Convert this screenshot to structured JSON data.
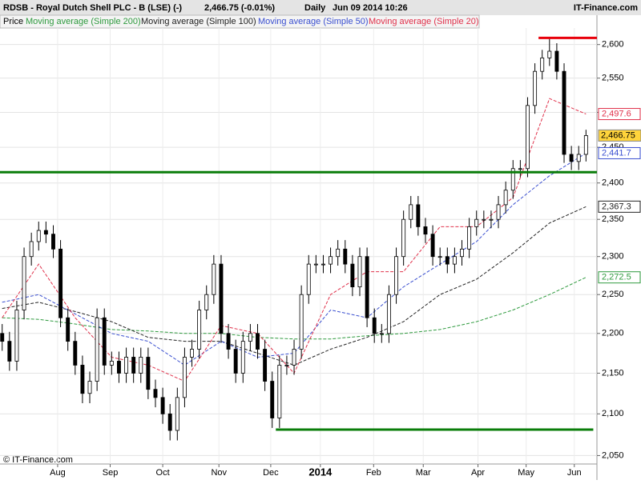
{
  "chart_data": {
    "type": "candlestick",
    "title": "RDSB - Royal Dutch Shell PLC - B (LSE) (-)",
    "quote": "2,466.75 (-0.01%)",
    "period": "Daily",
    "date": "Jun 09 2014 10:26",
    "brand": "IT-Finance.com",
    "copyright": "© IT-Finance.com",
    "price_label": "Price",
    "log_scale": true,
    "grid": true,
    "xlim": [
      -0.3,
      81.5
    ],
    "ylim": [
      2040,
      2625
    ],
    "xticks": [
      {
        "value": 7.6,
        "label": "Aug"
      },
      {
        "value": 14.8,
        "label": "Sep"
      },
      {
        "value": 22,
        "label": "Oct"
      },
      {
        "value": 29.7,
        "label": "Nov"
      },
      {
        "value": 36.8,
        "label": "Dec"
      },
      {
        "value": 43.6,
        "label": "2014"
      },
      {
        "value": 50.9,
        "label": "Feb"
      },
      {
        "value": 57.7,
        "label": "Mar"
      },
      {
        "value": 65.2,
        "label": "Apr"
      },
      {
        "value": 71.8,
        "label": "May"
      },
      {
        "value": 78.4,
        "label": "Jun"
      }
    ],
    "yticks": [
      {
        "value": 2050,
        "label": "2,050"
      },
      {
        "value": 2100,
        "label": "2,100"
      },
      {
        "value": 2150,
        "label": "2,150"
      },
      {
        "value": 2200,
        "label": "2,200"
      },
      {
        "value": 2250,
        "label": "2,250"
      },
      {
        "value": 2300,
        "label": "2,300"
      },
      {
        "value": 2350,
        "label": "2,350"
      },
      {
        "value": 2400,
        "label": "2,400"
      },
      {
        "value": 2450,
        "label": "2,450"
      },
      {
        "value": 2500,
        "label": "2,500"
      },
      {
        "value": 2550,
        "label": "2,550"
      },
      {
        "value": 2600,
        "label": "2,600"
      }
    ],
    "candles": [
      [
        2200,
        2212,
        2178,
        2190
      ],
      [
        2190,
        2202,
        2153,
        2165
      ],
      [
        2165,
        2242,
        2153,
        2230
      ],
      [
        2230,
        2312,
        2218,
        2300
      ],
      [
        2300,
        2332,
        2288,
        2320
      ],
      [
        2320,
        2347,
        2308,
        2335
      ],
      [
        2335,
        2347,
        2318,
        2330
      ],
      [
        2330,
        2342,
        2298,
        2310
      ],
      [
        2310,
        2322,
        2208,
        2220
      ],
      [
        2220,
        2232,
        2178,
        2190
      ],
      [
        2190,
        2202,
        2148,
        2160
      ],
      [
        2160,
        2172,
        2113,
        2125
      ],
      [
        2125,
        2152,
        2113,
        2140
      ],
      [
        2140,
        2232,
        2128,
        2220
      ],
      [
        2220,
        2232,
        2148,
        2160
      ],
      [
        2160,
        2177,
        2148,
        2165
      ],
      [
        2165,
        2177,
        2138,
        2150
      ],
      [
        2150,
        2182,
        2138,
        2170
      ],
      [
        2170,
        2182,
        2138,
        2150
      ],
      [
        2150,
        2182,
        2138,
        2170
      ],
      [
        2170,
        2182,
        2118,
        2130
      ],
      [
        2130,
        2142,
        2108,
        2120
      ],
      [
        2120,
        2132,
        2088,
        2100
      ],
      [
        2100,
        2112,
        2068,
        2080
      ],
      [
        2080,
        2132,
        2068,
        2120
      ],
      [
        2120,
        2182,
        2108,
        2170
      ],
      [
        2170,
        2192,
        2158,
        2180
      ],
      [
        2180,
        2242,
        2168,
        2230
      ],
      [
        2230,
        2262,
        2218,
        2250
      ],
      [
        2250,
        2302,
        2238,
        2290
      ],
      [
        2290,
        2302,
        2188,
        2200
      ],
      [
        2200,
        2212,
        2168,
        2180
      ],
      [
        2180,
        2192,
        2138,
        2150
      ],
      [
        2150,
        2202,
        2138,
        2190
      ],
      [
        2190,
        2212,
        2178,
        2200
      ],
      [
        2200,
        2212,
        2168,
        2180
      ],
      [
        2180,
        2192,
        2128,
        2140
      ],
      [
        2140,
        2152,
        2083,
        2095
      ],
      [
        2095,
        2172,
        2083,
        2160
      ],
      [
        2160,
        2172,
        2148,
        2160
      ],
      [
        2160,
        2192,
        2148,
        2180
      ],
      [
        2180,
        2262,
        2168,
        2250
      ],
      [
        2250,
        2302,
        2238,
        2290
      ],
      [
        2290,
        2302,
        2278,
        2290
      ],
      [
        2290,
        2302,
        2278,
        2290
      ],
      [
        2290,
        2312,
        2278,
        2300
      ],
      [
        2300,
        2322,
        2288,
        2310
      ],
      [
        2310,
        2322,
        2278,
        2290
      ],
      [
        2290,
        2302,
        2248,
        2260
      ],
      [
        2260,
        2312,
        2248,
        2300
      ],
      [
        2300,
        2312,
        2208,
        2220
      ],
      [
        2220,
        2232,
        2188,
        2200
      ],
      [
        2200,
        2212,
        2188,
        2200
      ],
      [
        2200,
        2262,
        2188,
        2250
      ],
      [
        2250,
        2312,
        2238,
        2300
      ],
      [
        2300,
        2362,
        2288,
        2350
      ],
      [
        2350,
        2382,
        2338,
        2370
      ],
      [
        2370,
        2382,
        2328,
        2340
      ],
      [
        2340,
        2352,
        2318,
        2330
      ],
      [
        2330,
        2342,
        2288,
        2300
      ],
      [
        2300,
        2312,
        2288,
        2300
      ],
      [
        2300,
        2312,
        2278,
        2290
      ],
      [
        2290,
        2312,
        2278,
        2300
      ],
      [
        2300,
        2322,
        2288,
        2310
      ],
      [
        2310,
        2352,
        2298,
        2340
      ],
      [
        2340,
        2362,
        2328,
        2350
      ],
      [
        2350,
        2362,
        2338,
        2350
      ],
      [
        2350,
        2362,
        2338,
        2350
      ],
      [
        2350,
        2382,
        2338,
        2370
      ],
      [
        2370,
        2402,
        2358,
        2390
      ],
      [
        2390,
        2432,
        2378,
        2420
      ],
      [
        2420,
        2432,
        2408,
        2420
      ],
      [
        2420,
        2522,
        2408,
        2510
      ],
      [
        2510,
        2572,
        2498,
        2560
      ],
      [
        2560,
        2592,
        2548,
        2580
      ],
      [
        2580,
        2610,
        2568,
        2590
      ],
      [
        2590,
        2602,
        2548,
        2560
      ],
      [
        2560,
        2572,
        2428,
        2440
      ],
      [
        2440,
        2452,
        2418,
        2430
      ],
      [
        2430,
        2452,
        2418,
        2440
      ],
      [
        2440,
        2475,
        2430,
        2466.75
      ]
    ],
    "last_price": {
      "value": 2466.75,
      "label": "2,466.75",
      "color": "#ffd43b"
    },
    "series": [
      {
        "name": "Moving average (Simple 200)",
        "color": "#2e9a3e",
        "x": [
          0,
          5,
          10,
          15,
          20,
          25,
          30,
          35,
          40,
          45,
          50,
          55,
          60,
          65,
          70,
          75,
          80
        ],
        "values": [
          2220,
          2218,
          2212,
          2205,
          2203,
          2200,
          2200,
          2195,
          2193,
          2193,
          2197,
          2200,
          2205,
          2215,
          2230,
          2250,
          2272.5
        ],
        "last_label": "2,272.5"
      },
      {
        "name": "Moving average (Simple 100)",
        "color": "#222222",
        "x": [
          0,
          5,
          10,
          15,
          20,
          25,
          30,
          35,
          40,
          45,
          50,
          55,
          60,
          65,
          70,
          75,
          80
        ],
        "values": [
          2232,
          2240,
          2228,
          2215,
          2195,
          2190,
          2190,
          2175,
          2160,
          2180,
          2195,
          2215,
          2250,
          2270,
          2305,
          2345,
          2367.3
        ],
        "last_label": "2,367.3"
      },
      {
        "name": "Moving average (Simple 50)",
        "color": "#3a4fd0",
        "x": [
          0,
          5,
          10,
          15,
          20,
          25,
          30,
          35,
          40,
          45,
          50,
          55,
          60,
          65,
          70,
          75,
          80
        ],
        "values": [
          2240,
          2250,
          2225,
          2200,
          2190,
          2160,
          2190,
          2170,
          2175,
          2230,
          2220,
          2260,
          2290,
          2320,
          2370,
          2410,
          2441.7
        ],
        "last_label": "2,441.7"
      },
      {
        "name": "Moving average (Simple 20)",
        "color": "#e0304a",
        "x": [
          0,
          5,
          10,
          15,
          20,
          25,
          30,
          35,
          40,
          45,
          50,
          55,
          60,
          65,
          70,
          75,
          80
        ],
        "values": [
          2220,
          2290,
          2220,
          2170,
          2160,
          2140,
          2210,
          2200,
          2150,
          2250,
          2280,
          2280,
          2340,
          2340,
          2380,
          2520,
          2497.6
        ],
        "last_label": "2,497.6"
      }
    ],
    "levels": [
      {
        "value": 2610,
        "from": 73.5,
        "to": 81.5,
        "color": "#e8000b"
      },
      {
        "value": 2415,
        "from": -0.3,
        "to": 81.5,
        "color": "#0a7d0a"
      },
      {
        "value": 2081,
        "from": 37.5,
        "to": 81.0,
        "color": "#0a7d0a"
      }
    ]
  }
}
